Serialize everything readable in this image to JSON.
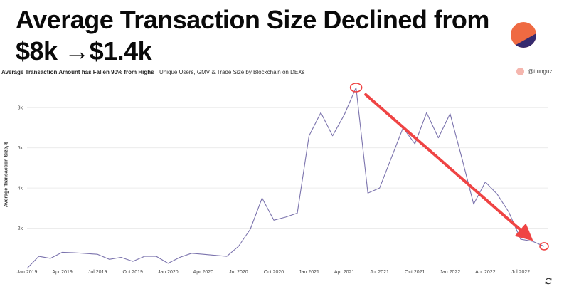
{
  "header": {
    "title_line1": "Average Transaction Size Declined from",
    "title_line2": "$8k →$1.4k"
  },
  "chart_header": {
    "title": "Average Transaction Amount has Fallen 90% from Highs",
    "subtitle": "Unique Users, GMV & Trade Size by Blockchain on DEXs",
    "credit": "@ttunguz"
  },
  "colors": {
    "line": "#7b73ad",
    "arrow": "#ef4444",
    "logo_top": "#ef6a42",
    "logo_bottom": "#352a6e"
  },
  "icons": {
    "logo": "logo-icon",
    "refresh": "refresh-icon"
  },
  "chart_data": {
    "type": "line",
    "ylabel": "Average Transaction Size, $",
    "xlabel": "",
    "ylim": [
      0,
      9000
    ],
    "yticks": [
      2000,
      4000,
      6000,
      8000
    ],
    "ytick_labels": [
      "2k",
      "4k",
      "6k",
      "8k"
    ],
    "grid": true,
    "xticks": [
      "2019-01",
      "2019-04",
      "2019-07",
      "2019-10",
      "2020-01",
      "2020-04",
      "2020-07",
      "2020-10",
      "2021-01",
      "2021-04",
      "2021-07",
      "2021-10",
      "2022-01",
      "2022-04",
      "2022-07"
    ],
    "xtick_labels": [
      "Jan 2019",
      "Apr 2019",
      "Jul 2019",
      "Oct 2019",
      "Jan 2020",
      "Apr 2020",
      "Jul 2020",
      "Oct 2020",
      "Jan 2021",
      "Apr 2021",
      "Jul 2021",
      "Oct 2021",
      "Jan 2022",
      "Apr 2022",
      "Jul 2022"
    ],
    "series": [
      {
        "x": [
          "2019-01",
          "2019-02",
          "2019-03",
          "2019-04",
          "2019-05",
          "2019-06",
          "2019-07",
          "2019-08",
          "2019-09",
          "2019-10",
          "2019-11",
          "2019-12",
          "2020-01",
          "2020-02",
          "2020-03",
          "2020-04",
          "2020-05",
          "2020-06",
          "2020-07",
          "2020-08",
          "2020-09",
          "2020-10",
          "2020-11",
          "2020-12",
          "2021-01",
          "2021-02",
          "2021-03",
          "2021-04",
          "2021-05",
          "2021-06",
          "2021-07",
          "2021-08",
          "2021-09",
          "2021-10",
          "2021-11",
          "2021-12",
          "2022-01",
          "2022-02",
          "2022-03",
          "2022-04",
          "2022-05",
          "2022-06",
          "2022-07",
          "2022-08",
          "2022-09"
        ],
        "values": [
          0,
          600,
          500,
          800,
          780,
          740,
          700,
          450,
          550,
          350,
          600,
          600,
          250,
          550,
          750,
          700,
          650,
          600,
          1100,
          1950,
          3500,
          2400,
          2550,
          2750,
          6600,
          7750,
          6600,
          7650,
          9000,
          3750,
          4000,
          5500,
          7000,
          6200,
          7750,
          6500,
          7700,
          5500,
          3200,
          4300,
          3700,
          2800,
          1450,
          1350,
          1100
        ]
      }
    ],
    "annotations": {
      "peak": {
        "x": "2021-05",
        "y": 9000
      },
      "end": {
        "x": "2022-09",
        "y": 1100
      },
      "arrow_from": {
        "x": "2021-06",
        "y": 8650
      },
      "arrow_to": {
        "x": "2022-08",
        "y": 1650
      }
    }
  }
}
